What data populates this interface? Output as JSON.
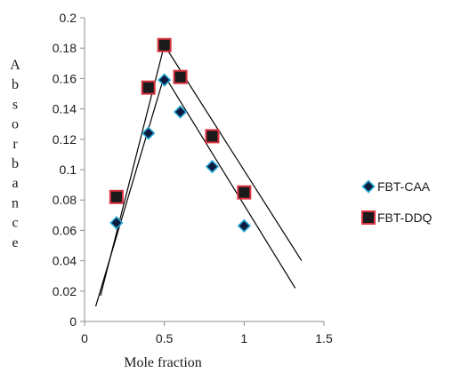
{
  "chart_data": {
    "type": "scatter",
    "title": "",
    "xlabel": "Mole fraction",
    "ylabel": "Absorbance",
    "xlim": [
      0,
      1.5
    ],
    "ylim": [
      0,
      0.2
    ],
    "x_ticks": [
      "0",
      "0.5",
      "1",
      "1.5"
    ],
    "y_ticks": [
      "0",
      "0.02",
      "0.04",
      "0.06",
      "0.08",
      "0.1",
      "0.12",
      "0.14",
      "0.16",
      "0.18",
      "0.2"
    ],
    "grid": false,
    "legend_position": "right",
    "series": [
      {
        "name": "FBT-CAA",
        "marker": "diamond",
        "color": "#0d1b3e",
        "edge_color": "#2aa7d6",
        "x": [
          0.2,
          0.4,
          0.5,
          0.6,
          0.8,
          1.0
        ],
        "y": [
          0.065,
          0.124,
          0.159,
          0.138,
          0.102,
          0.063
        ]
      },
      {
        "name": "FBT-DDQ",
        "marker": "square",
        "color": "#1a1a1a",
        "edge_color": "#d9333f",
        "x": [
          0.2,
          0.4,
          0.5,
          0.6,
          0.8,
          1.0
        ],
        "y": [
          0.082,
          0.154,
          0.182,
          0.161,
          0.122,
          0.085
        ]
      }
    ],
    "trend_lines": [
      {
        "x": [
          0.07,
          0.5,
          1.32
        ],
        "y": [
          0.01,
          0.162,
          0.022
        ]
      },
      {
        "x": [
          0.1,
          0.5,
          1.36
        ],
        "y": [
          0.017,
          0.182,
          0.04
        ]
      }
    ]
  }
}
